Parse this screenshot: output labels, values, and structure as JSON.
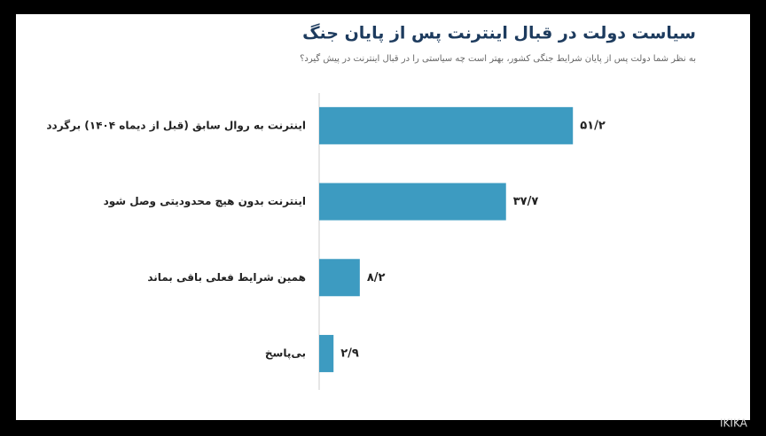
{
  "chart_data": {
    "type": "bar",
    "orientation": "horizontal",
    "title": "سیاست دولت در قبال اینترنت پس از پایان جنگ",
    "subtitle": "به نظر شما دولت پس از پایان شرایط جنگی کشور، بهتر است چه سیاستی را در قبال اینترنت در پیش گیرد؟",
    "categories": [
      "اینترنت به روال سابق (قبل از دیماه ۱۴۰۴) برگردد",
      "اینترنت بدون هیچ محدودیتی وصل شود",
      "همین شرایط فعلی باقی بماند",
      "بی‌پاسخ"
    ],
    "values": [
      51.2,
      37.7,
      8.2,
      2.9
    ],
    "value_labels": [
      "۵۱/۲",
      "۳۷/۷",
      "۸/۲",
      "۲/۹"
    ],
    "color": "#3d9bc1",
    "watermark": "IKIKA"
  }
}
